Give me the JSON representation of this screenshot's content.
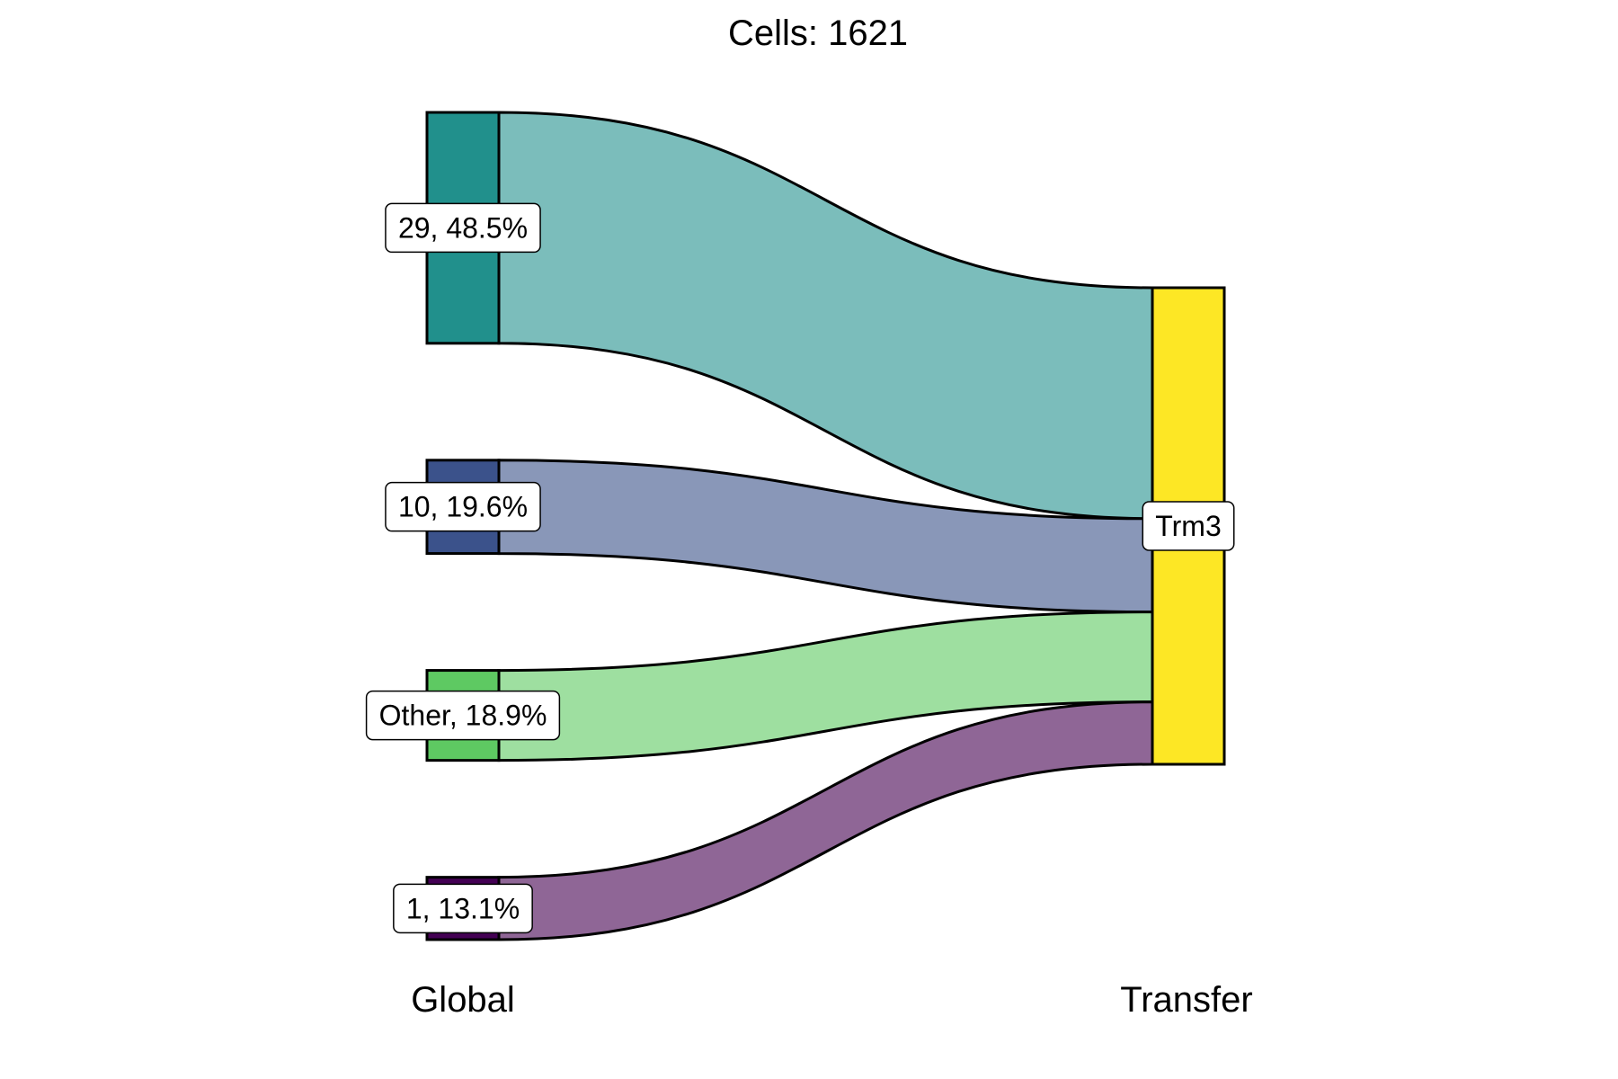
{
  "chart_data": {
    "type": "sankey",
    "title": "Cells:  1621",
    "axes": [
      "Global",
      "Transfer"
    ],
    "flows": [
      {
        "source": "29",
        "target": "Trm3",
        "percent": 48.5,
        "label": "29, 48.5%",
        "node_color": "#21908C",
        "flow_color": "#7BBDBB"
      },
      {
        "source": "10",
        "target": "Trm3",
        "percent": 19.6,
        "label": "10, 19.6%",
        "node_color": "#3B528B",
        "flow_color": "#8997B8"
      },
      {
        "source": "Other",
        "target": "Trm3",
        "percent": 18.9,
        "label": "Other, 18.9%",
        "node_color": "#5EC962",
        "flow_color": "#9EDFA0"
      },
      {
        "source": "1",
        "target": "Trm3",
        "percent": 13.1,
        "label": "1, 13.1%",
        "node_color": "#440154",
        "flow_color": "#8F6696"
      }
    ],
    "target_node": {
      "name": "Trm3",
      "label": "Trm3",
      "color": "#FDE725"
    }
  }
}
